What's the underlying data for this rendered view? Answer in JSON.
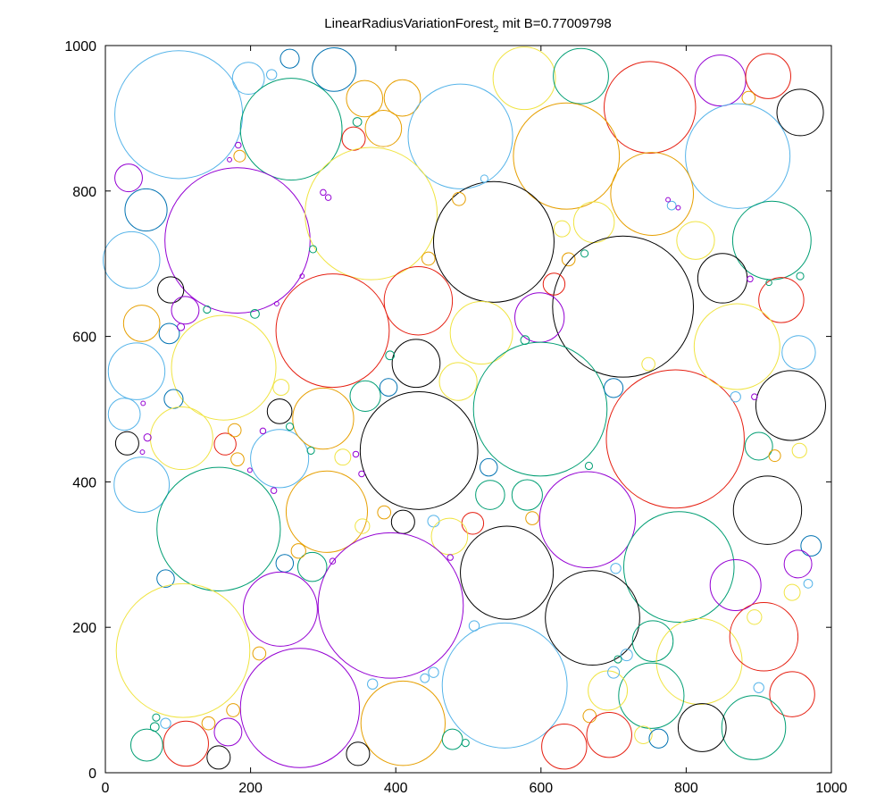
{
  "chart_data": {
    "type": "scatter",
    "title": "LinearRadiusVariationForest",
    "title_subscript": "2",
    "title_suffix": " mit B=0.77009798",
    "xlim": [
      0,
      1000
    ],
    "ylim": [
      0,
      1000
    ],
    "xticks": [
      0,
      200,
      400,
      600,
      800,
      1000
    ],
    "yticks": [
      0,
      200,
      400,
      600,
      800,
      1000
    ],
    "grid": false,
    "colors": {
      "purple": "#9400d3",
      "teal": "#009e73",
      "sky": "#56b4e9",
      "orange": "#e69f00",
      "yellow": "#f0e442",
      "navy": "#0072b2",
      "red": "#e51e10",
      "black": "#000000"
    },
    "circles": [
      {
        "x": 101,
        "y": 905,
        "r": 88,
        "c": "sky"
      },
      {
        "x": 254,
        "y": 982,
        "r": 13,
        "c": "navy"
      },
      {
        "x": 197,
        "y": 955,
        "r": 22,
        "c": "sky"
      },
      {
        "x": 229,
        "y": 960,
        "r": 7,
        "c": "sky"
      },
      {
        "x": 256,
        "y": 885,
        "r": 70,
        "c": "teal"
      },
      {
        "x": 315,
        "y": 967,
        "r": 30,
        "c": "navy"
      },
      {
        "x": 357,
        "y": 927,
        "r": 25,
        "c": "orange"
      },
      {
        "x": 409,
        "y": 928,
        "r": 25,
        "c": "orange"
      },
      {
        "x": 383,
        "y": 886,
        "r": 25,
        "c": "orange"
      },
      {
        "x": 342,
        "y": 872,
        "r": 16,
        "c": "red"
      },
      {
        "x": 347,
        "y": 895,
        "r": 6,
        "c": "teal"
      },
      {
        "x": 489,
        "y": 875,
        "r": 72,
        "c": "sky"
      },
      {
        "x": 577,
        "y": 955,
        "r": 43,
        "c": "yellow"
      },
      {
        "x": 655,
        "y": 958,
        "r": 38,
        "c": "teal"
      },
      {
        "x": 750,
        "y": 915,
        "r": 63,
        "c": "red"
      },
      {
        "x": 847,
        "y": 952,
        "r": 35,
        "c": "purple"
      },
      {
        "x": 913,
        "y": 958,
        "r": 31,
        "c": "red"
      },
      {
        "x": 957,
        "y": 908,
        "r": 32,
        "c": "black"
      },
      {
        "x": 886,
        "y": 928,
        "r": 9,
        "c": "orange"
      },
      {
        "x": 635,
        "y": 848,
        "r": 73,
        "c": "orange"
      },
      {
        "x": 871,
        "y": 848,
        "r": 72,
        "c": "sky"
      },
      {
        "x": 32,
        "y": 818,
        "r": 19,
        "c": "purple"
      },
      {
        "x": 185,
        "y": 848,
        "r": 8,
        "c": "orange"
      },
      {
        "x": 183,
        "y": 863,
        "r": 4,
        "c": "purple"
      },
      {
        "x": 171,
        "y": 843,
        "r": 3,
        "c": "purple"
      },
      {
        "x": 56,
        "y": 774,
        "r": 29,
        "c": "navy"
      },
      {
        "x": 36,
        "y": 705,
        "r": 39,
        "c": "sky"
      },
      {
        "x": 182,
        "y": 732,
        "r": 100,
        "c": "purple"
      },
      {
        "x": 366,
        "y": 769,
        "r": 91,
        "c": "yellow"
      },
      {
        "x": 535,
        "y": 730,
        "r": 83,
        "c": "black"
      },
      {
        "x": 753,
        "y": 796,
        "r": 57,
        "c": "orange"
      },
      {
        "x": 673,
        "y": 757,
        "r": 28,
        "c": "yellow"
      },
      {
        "x": 813,
        "y": 732,
        "r": 26,
        "c": "yellow"
      },
      {
        "x": 918,
        "y": 732,
        "r": 54,
        "c": "teal"
      },
      {
        "x": 780,
        "y": 780,
        "r": 6,
        "c": "sky"
      },
      {
        "x": 775,
        "y": 788,
        "r": 3,
        "c": "purple"
      },
      {
        "x": 789,
        "y": 777,
        "r": 3,
        "c": "purple"
      },
      {
        "x": 522,
        "y": 817,
        "r": 5,
        "c": "sky"
      },
      {
        "x": 487,
        "y": 789,
        "r": 9,
        "c": "orange"
      },
      {
        "x": 629,
        "y": 748,
        "r": 11,
        "c": "yellow"
      },
      {
        "x": 638,
        "y": 706,
        "r": 9,
        "c": "orange"
      },
      {
        "x": 660,
        "y": 714,
        "r": 5,
        "c": "teal"
      },
      {
        "x": 713,
        "y": 641,
        "r": 97,
        "c": "black"
      },
      {
        "x": 850,
        "y": 680,
        "r": 34,
        "c": "black"
      },
      {
        "x": 931,
        "y": 650,
        "r": 31,
        "c": "red"
      },
      {
        "x": 914,
        "y": 674,
        "r": 4,
        "c": "teal"
      },
      {
        "x": 957,
        "y": 683,
        "r": 5,
        "c": "teal"
      },
      {
        "x": 90,
        "y": 664,
        "r": 18,
        "c": "black"
      },
      {
        "x": 110,
        "y": 636,
        "r": 19,
        "c": "purple"
      },
      {
        "x": 50,
        "y": 618,
        "r": 25,
        "c": "orange"
      },
      {
        "x": 88,
        "y": 604,
        "r": 14,
        "c": "navy"
      },
      {
        "x": 140,
        "y": 637,
        "r": 5,
        "c": "teal"
      },
      {
        "x": 206,
        "y": 631,
        "r": 6,
        "c": "teal"
      },
      {
        "x": 313,
        "y": 608,
        "r": 78,
        "c": "red"
      },
      {
        "x": 431,
        "y": 649,
        "r": 47,
        "c": "red"
      },
      {
        "x": 518,
        "y": 605,
        "r": 43,
        "c": "yellow"
      },
      {
        "x": 598,
        "y": 626,
        "r": 34,
        "c": "purple"
      },
      {
        "x": 618,
        "y": 672,
        "r": 15,
        "c": "red"
      },
      {
        "x": 445,
        "y": 707,
        "r": 9,
        "c": "orange"
      },
      {
        "x": 286,
        "y": 720,
        "r": 5,
        "c": "teal"
      },
      {
        "x": 300,
        "y": 798,
        "r": 4,
        "c": "purple"
      },
      {
        "x": 307,
        "y": 791,
        "r": 4,
        "c": "purple"
      },
      {
        "x": 43,
        "y": 552,
        "r": 39,
        "c": "sky"
      },
      {
        "x": 163,
        "y": 557,
        "r": 72,
        "c": "yellow"
      },
      {
        "x": 94,
        "y": 514,
        "r": 13,
        "c": "navy"
      },
      {
        "x": 26,
        "y": 493,
        "r": 22,
        "c": "sky"
      },
      {
        "x": 30,
        "y": 453,
        "r": 16,
        "c": "black"
      },
      {
        "x": 105,
        "y": 460,
        "r": 43,
        "c": "yellow"
      },
      {
        "x": 165,
        "y": 452,
        "r": 15,
        "c": "red"
      },
      {
        "x": 178,
        "y": 471,
        "r": 9,
        "c": "orange"
      },
      {
        "x": 182,
        "y": 431,
        "r": 9,
        "c": "orange"
      },
      {
        "x": 240,
        "y": 432,
        "r": 40,
        "c": "sky"
      },
      {
        "x": 242,
        "y": 530,
        "r": 11,
        "c": "yellow"
      },
      {
        "x": 240,
        "y": 497,
        "r": 17,
        "c": "black"
      },
      {
        "x": 300,
        "y": 487,
        "r": 42,
        "c": "orange"
      },
      {
        "x": 358,
        "y": 518,
        "r": 21,
        "c": "teal"
      },
      {
        "x": 390,
        "y": 530,
        "r": 12,
        "c": "navy"
      },
      {
        "x": 428,
        "y": 563,
        "r": 33,
        "c": "black"
      },
      {
        "x": 486,
        "y": 538,
        "r": 26,
        "c": "yellow"
      },
      {
        "x": 432,
        "y": 443,
        "r": 81,
        "c": "black"
      },
      {
        "x": 599,
        "y": 500,
        "r": 92,
        "c": "teal"
      },
      {
        "x": 785,
        "y": 459,
        "r": 95,
        "c": "red"
      },
      {
        "x": 870,
        "y": 586,
        "r": 59,
        "c": "yellow"
      },
      {
        "x": 955,
        "y": 578,
        "r": 23,
        "c": "sky"
      },
      {
        "x": 944,
        "y": 505,
        "r": 48,
        "c": "black"
      },
      {
        "x": 900,
        "y": 449,
        "r": 19,
        "c": "teal"
      },
      {
        "x": 922,
        "y": 436,
        "r": 8,
        "c": "orange"
      },
      {
        "x": 956,
        "y": 443,
        "r": 10,
        "c": "yellow"
      },
      {
        "x": 700,
        "y": 529,
        "r": 13,
        "c": "navy"
      },
      {
        "x": 748,
        "y": 562,
        "r": 9,
        "c": "yellow"
      },
      {
        "x": 868,
        "y": 517,
        "r": 7,
        "c": "sky"
      },
      {
        "x": 894,
        "y": 517,
        "r": 4,
        "c": "purple"
      },
      {
        "x": 50,
        "y": 396,
        "r": 38,
        "c": "sky"
      },
      {
        "x": 156,
        "y": 335,
        "r": 85,
        "c": "teal"
      },
      {
        "x": 305,
        "y": 359,
        "r": 56,
        "c": "orange"
      },
      {
        "x": 354,
        "y": 339,
        "r": 10,
        "c": "yellow"
      },
      {
        "x": 384,
        "y": 358,
        "r": 9,
        "c": "orange"
      },
      {
        "x": 410,
        "y": 345,
        "r": 16,
        "c": "black"
      },
      {
        "x": 528,
        "y": 420,
        "r": 12,
        "c": "navy"
      },
      {
        "x": 530,
        "y": 382,
        "r": 20,
        "c": "teal"
      },
      {
        "x": 581,
        "y": 382,
        "r": 21,
        "c": "teal"
      },
      {
        "x": 588,
        "y": 350,
        "r": 9,
        "c": "orange"
      },
      {
        "x": 664,
        "y": 348,
        "r": 66,
        "c": "purple"
      },
      {
        "x": 506,
        "y": 343,
        "r": 15,
        "c": "red"
      },
      {
        "x": 452,
        "y": 346,
        "r": 8,
        "c": "sky"
      },
      {
        "x": 474,
        "y": 325,
        "r": 25,
        "c": "yellow"
      },
      {
        "x": 475,
        "y": 296,
        "r": 4,
        "c": "purple"
      },
      {
        "x": 790,
        "y": 283,
        "r": 76,
        "c": "teal"
      },
      {
        "x": 912,
        "y": 361,
        "r": 47,
        "c": "black"
      },
      {
        "x": 972,
        "y": 312,
        "r": 14,
        "c": "navy"
      },
      {
        "x": 954,
        "y": 287,
        "r": 19,
        "c": "purple"
      },
      {
        "x": 868,
        "y": 258,
        "r": 35,
        "c": "purple"
      },
      {
        "x": 946,
        "y": 248,
        "r": 11,
        "c": "yellow"
      },
      {
        "x": 968,
        "y": 260,
        "r": 6,
        "c": "sky"
      },
      {
        "x": 83,
        "y": 267,
        "r": 12,
        "c": "navy"
      },
      {
        "x": 247,
        "y": 288,
        "r": 12,
        "c": "navy"
      },
      {
        "x": 285,
        "y": 283,
        "r": 20,
        "c": "teal"
      },
      {
        "x": 266,
        "y": 305,
        "r": 10,
        "c": "orange"
      },
      {
        "x": 313,
        "y": 291,
        "r": 4,
        "c": "purple"
      },
      {
        "x": 241,
        "y": 225,
        "r": 51,
        "c": "purple"
      },
      {
        "x": 393,
        "y": 230,
        "r": 100,
        "c": "purple"
      },
      {
        "x": 553,
        "y": 275,
        "r": 64,
        "c": "black"
      },
      {
        "x": 671,
        "y": 213,
        "r": 65,
        "c": "black"
      },
      {
        "x": 703,
        "y": 281,
        "r": 7,
        "c": "sky"
      },
      {
        "x": 107,
        "y": 168,
        "r": 92,
        "c": "yellow"
      },
      {
        "x": 212,
        "y": 164,
        "r": 9,
        "c": "orange"
      },
      {
        "x": 268,
        "y": 89,
        "r": 82,
        "c": "purple"
      },
      {
        "x": 410,
        "y": 68,
        "r": 58,
        "c": "orange"
      },
      {
        "x": 550,
        "y": 120,
        "r": 86,
        "c": "sky"
      },
      {
        "x": 508,
        "y": 202,
        "r": 7,
        "c": "sky"
      },
      {
        "x": 452,
        "y": 138,
        "r": 7,
        "c": "sky"
      },
      {
        "x": 440,
        "y": 130,
        "r": 6,
        "c": "sky"
      },
      {
        "x": 368,
        "y": 122,
        "r": 7,
        "c": "sky"
      },
      {
        "x": 754,
        "y": 181,
        "r": 28,
        "c": "teal"
      },
      {
        "x": 818,
        "y": 153,
        "r": 59,
        "c": "yellow"
      },
      {
        "x": 907,
        "y": 187,
        "r": 47,
        "c": "red"
      },
      {
        "x": 894,
        "y": 214,
        "r": 10,
        "c": "yellow"
      },
      {
        "x": 946,
        "y": 108,
        "r": 31,
        "c": "red"
      },
      {
        "x": 900,
        "y": 117,
        "r": 7,
        "c": "sky"
      },
      {
        "x": 893,
        "y": 62,
        "r": 44,
        "c": "teal"
      },
      {
        "x": 822,
        "y": 62,
        "r": 33,
        "c": "black"
      },
      {
        "x": 752,
        "y": 106,
        "r": 45,
        "c": "teal"
      },
      {
        "x": 692,
        "y": 113,
        "r": 27,
        "c": "yellow"
      },
      {
        "x": 700,
        "y": 138,
        "r": 8,
        "c": "sky"
      },
      {
        "x": 718,
        "y": 162,
        "r": 8,
        "c": "sky"
      },
      {
        "x": 706,
        "y": 156,
        "r": 5,
        "c": "teal"
      },
      {
        "x": 667,
        "y": 78,
        "r": 9,
        "c": "orange"
      },
      {
        "x": 694,
        "y": 52,
        "r": 31,
        "c": "red"
      },
      {
        "x": 741,
        "y": 52,
        "r": 12,
        "c": "yellow"
      },
      {
        "x": 762,
        "y": 47,
        "r": 13,
        "c": "navy"
      },
      {
        "x": 632,
        "y": 36,
        "r": 31,
        "c": "red"
      },
      {
        "x": 478,
        "y": 46,
        "r": 14,
        "c": "teal"
      },
      {
        "x": 496,
        "y": 41,
        "r": 5,
        "c": "teal"
      },
      {
        "x": 348,
        "y": 26,
        "r": 16,
        "c": "black"
      },
      {
        "x": 156,
        "y": 21,
        "r": 16,
        "c": "black"
      },
      {
        "x": 111,
        "y": 40,
        "r": 31,
        "c": "red"
      },
      {
        "x": 57,
        "y": 38,
        "r": 22,
        "c": "teal"
      },
      {
        "x": 68,
        "y": 63,
        "r": 6,
        "c": "teal"
      },
      {
        "x": 83,
        "y": 68,
        "r": 7,
        "c": "sky"
      },
      {
        "x": 70,
        "y": 76,
        "r": 5,
        "c": "teal"
      },
      {
        "x": 142,
        "y": 68,
        "r": 9,
        "c": "orange"
      },
      {
        "x": 169,
        "y": 56,
        "r": 19,
        "c": "purple"
      },
      {
        "x": 176,
        "y": 86,
        "r": 9,
        "c": "orange"
      },
      {
        "x": 254,
        "y": 476,
        "r": 5,
        "c": "teal"
      },
      {
        "x": 283,
        "y": 443,
        "r": 5,
        "c": "teal"
      },
      {
        "x": 327,
        "y": 434,
        "r": 11,
        "c": "yellow"
      },
      {
        "x": 345,
        "y": 438,
        "r": 4,
        "c": "purple"
      },
      {
        "x": 353,
        "y": 411,
        "r": 4,
        "c": "purple"
      },
      {
        "x": 217,
        "y": 470,
        "r": 4,
        "c": "purple"
      },
      {
        "x": 199,
        "y": 416,
        "r": 3,
        "c": "purple"
      },
      {
        "x": 232,
        "y": 388,
        "r": 4,
        "c": "purple"
      },
      {
        "x": 58,
        "y": 461,
        "r": 5,
        "c": "purple"
      },
      {
        "x": 51,
        "y": 441,
        "r": 3,
        "c": "purple"
      },
      {
        "x": 52,
        "y": 508,
        "r": 3,
        "c": "purple"
      },
      {
        "x": 104,
        "y": 613,
        "r": 5,
        "c": "purple"
      },
      {
        "x": 236,
        "y": 645,
        "r": 3,
        "c": "purple"
      },
      {
        "x": 271,
        "y": 683,
        "r": 3,
        "c": "purple"
      },
      {
        "x": 392,
        "y": 574,
        "r": 6,
        "c": "teal"
      },
      {
        "x": 578,
        "y": 595,
        "r": 6,
        "c": "teal"
      },
      {
        "x": 666,
        "y": 422,
        "r": 5,
        "c": "teal"
      },
      {
        "x": 888,
        "y": 679,
        "r": 4,
        "c": "purple"
      }
    ]
  }
}
